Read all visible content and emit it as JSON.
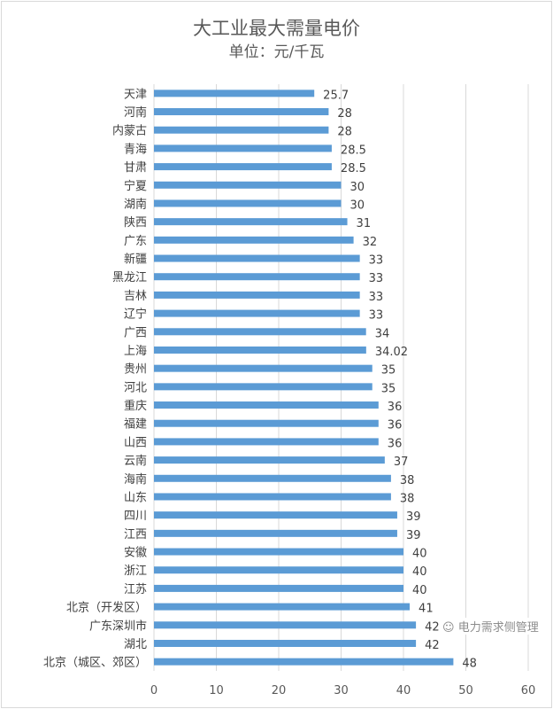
{
  "chart_data": {
    "type": "bar",
    "orientation": "horizontal",
    "title": "大工业最大需量电价",
    "subtitle": "单位：元/千瓦",
    "categories": [
      "天津",
      "河南",
      "内蒙古",
      "青海",
      "甘肃",
      "宁夏",
      "湖南",
      "陕西",
      "广东",
      "新疆",
      "黑龙江",
      "吉林",
      "辽宁",
      "广西",
      "上海",
      "贵州",
      "河北",
      "重庆",
      "福建",
      "山西",
      "云南",
      "海南",
      "山东",
      "四川",
      "江西",
      "安徽",
      "浙江",
      "江苏",
      "北京（开发区）",
      "广东深圳市",
      "湖北",
      "北京（城区、郊区）"
    ],
    "values": [
      25.7,
      28,
      28,
      28.5,
      28.5,
      30,
      30,
      31,
      32,
      33,
      33,
      33,
      33,
      34,
      34.02,
      35,
      35,
      36,
      36,
      36,
      37,
      38,
      38,
      39,
      39,
      40,
      40,
      40,
      41,
      42,
      42,
      48
    ],
    "value_labels": [
      "25.7",
      "28",
      "28",
      "28.5",
      "28.5",
      "30",
      "30",
      "31",
      "32",
      "33",
      "33",
      "33",
      "33",
      "34",
      "34.02",
      "35",
      "35",
      "36",
      "36",
      "36",
      "37",
      "38",
      "38",
      "39",
      "39",
      "40",
      "40",
      "40",
      "41",
      "42",
      "42",
      "48"
    ],
    "xlim": [
      0,
      60
    ],
    "xticks": [
      "0",
      "10",
      "20",
      "30",
      "40",
      "50",
      "60"
    ],
    "grid": true,
    "bar_color": "#5B9BD5"
  },
  "watermark": "电力需求侧管理"
}
